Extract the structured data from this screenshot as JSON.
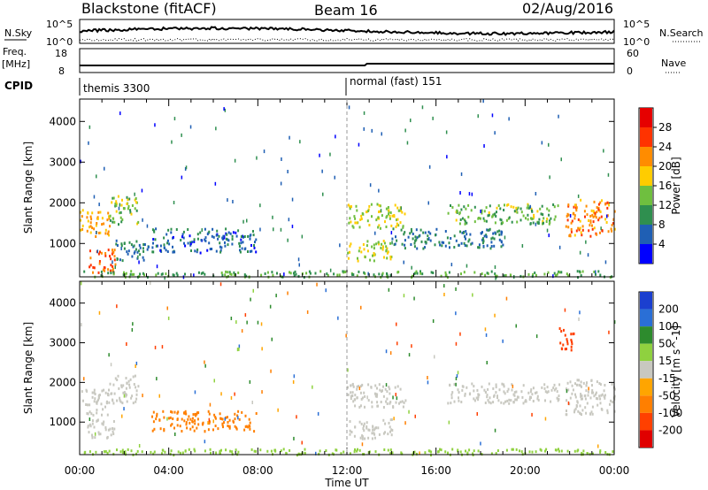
{
  "header": {
    "radar": "Blackstone (fitACF)",
    "beam": "Beam 16",
    "date": "02/Aug/2016"
  },
  "noise_panel": {
    "left_label": "N.Sky",
    "right_label": "N.Search",
    "left_ticks": [
      "10^5",
      "10^0"
    ],
    "right_ticks": [
      "10^5",
      "10^0"
    ]
  },
  "freq_panel": {
    "left_label_1": "Freq.",
    "left_label_2": "[MHz]",
    "right_label": "Nave",
    "left_ticks": [
      "18",
      "8"
    ],
    "right_ticks": [
      "60",
      "0"
    ]
  },
  "cpid_panel": {
    "label": "CPID",
    "programs": [
      {
        "name": "themis 3300",
        "start_hour": 0
      },
      {
        "name": "normal (fast) 151",
        "start_hour": 12
      }
    ]
  },
  "colors": {
    "power": [
      "#0000ff",
      "#1f5fb4",
      "#2f8f4f",
      "#6fbf3f",
      "#ffcc00",
      "#ff8c00",
      "#ff3300",
      "#e60000"
    ],
    "velocity": [
      "#1b3fcf",
      "#2a6fd6",
      "#2d8b2d",
      "#8fd13f",
      "#c8c8c0",
      "#ffa500",
      "#ff7f00",
      "#ff4000",
      "#e00000"
    ]
  },
  "chart_data": [
    {
      "type": "heatmap",
      "title": "",
      "xlabel": "Time UT",
      "ylabel": "Slant Range [km]",
      "xlim": [
        0,
        24
      ],
      "ylim": [
        180,
        4550
      ],
      "x_ticks": [
        "00:00",
        "04:00",
        "08:00",
        "12:00",
        "16:00",
        "20:00",
        "00:00"
      ],
      "y_ticks": [
        1000,
        2000,
        3000,
        4000
      ],
      "colorbar": {
        "label": "Power [dB]",
        "min": 0,
        "max": 32,
        "ticks": [
          4,
          8,
          12,
          16,
          20,
          24,
          28
        ]
      },
      "regions": [
        {
          "t0": 0.0,
          "t1": 1.4,
          "r0": 1200,
          "r1": 1850,
          "v": 20
        },
        {
          "t0": 1.3,
          "t1": 2.6,
          "r0": 1500,
          "r1": 2200,
          "v": 14
        },
        {
          "t0": 0.3,
          "t1": 1.6,
          "r0": 300,
          "r1": 900,
          "v": 24
        },
        {
          "t0": 1.6,
          "t1": 3.1,
          "r0": 600,
          "r1": 1100,
          "v": 8
        },
        {
          "t0": 3.2,
          "t1": 7.9,
          "r0": 800,
          "r1": 1400,
          "v": 7
        },
        {
          "t0": 12.0,
          "t1": 14.6,
          "r0": 1400,
          "r1": 2000,
          "v": 16
        },
        {
          "t0": 12.0,
          "t1": 14.0,
          "r0": 600,
          "r1": 1100,
          "v": 16
        },
        {
          "t0": 14.0,
          "t1": 19.0,
          "r0": 900,
          "r1": 1400,
          "v": 8
        },
        {
          "t0": 16.5,
          "t1": 21.5,
          "r0": 1500,
          "r1": 2000,
          "v": 13
        },
        {
          "t0": 21.8,
          "t1": 24.0,
          "r0": 1200,
          "r1": 2100,
          "v": 22
        },
        {
          "t0": 0.0,
          "t1": 24.0,
          "r0": 200,
          "r1": 350,
          "v": 12
        }
      ]
    },
    {
      "type": "heatmap",
      "title": "",
      "xlabel": "Time UT",
      "ylabel": "Slant Range [km]",
      "xlim": [
        0,
        24
      ],
      "ylim": [
        180,
        4550
      ],
      "x_ticks": [
        "00:00",
        "04:00",
        "08:00",
        "12:00",
        "16:00",
        "20:00",
        "00:00"
      ],
      "y_ticks": [
        1000,
        2000,
        3000,
        4000
      ],
      "colorbar": {
        "label": "Velocity [m s^-1]",
        "ticks": [
          "200",
          "100",
          "50",
          "15",
          "-15",
          "-50",
          "-100",
          "-200"
        ]
      },
      "regions": [
        {
          "t0": 0.0,
          "t1": 1.4,
          "r0": 1200,
          "r1": 1850,
          "v": 0
        },
        {
          "t0": 1.3,
          "t1": 2.6,
          "r0": 1500,
          "r1": 2200,
          "v": 0
        },
        {
          "t0": 0.3,
          "t1": 1.6,
          "r0": 600,
          "r1": 1100,
          "v": 0
        },
        {
          "t0": 3.2,
          "t1": 7.9,
          "r0": 800,
          "r1": 1300,
          "v": -60
        },
        {
          "t0": 12.0,
          "t1": 14.6,
          "r0": 1400,
          "r1": 2000,
          "v": 0
        },
        {
          "t0": 12.0,
          "t1": 14.0,
          "r0": 600,
          "r1": 1100,
          "v": 0
        },
        {
          "t0": 16.5,
          "t1": 21.5,
          "r0": 1500,
          "r1": 2000,
          "v": 0
        },
        {
          "t0": 21.8,
          "t1": 24.0,
          "r0": 1200,
          "r1": 2100,
          "v": 0
        },
        {
          "t0": 21.5,
          "t1": 22.2,
          "r0": 2800,
          "r1": 3400,
          "v": -180
        },
        {
          "t0": 0.0,
          "t1": 24.0,
          "r0": 200,
          "r1": 350,
          "v": 30
        }
      ]
    }
  ]
}
